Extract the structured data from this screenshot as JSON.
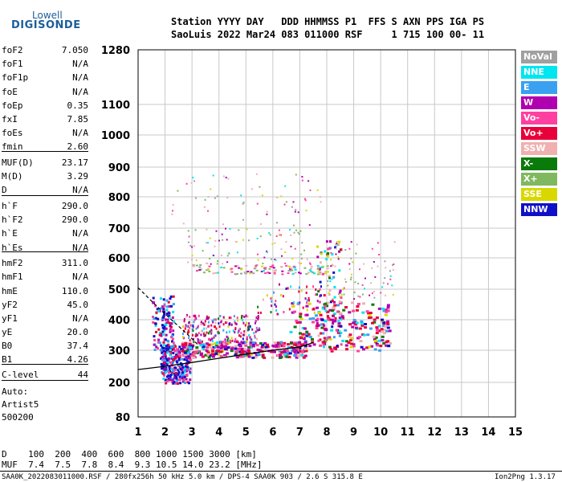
{
  "logo": {
    "top": "Lowell",
    "main": "DIGISONDE"
  },
  "header": {
    "line1": "Station YYYY DAY   DDD HHMMSS P1  FFS S AXN PPS IGA PS",
    "line2": "SaoLuis 2022 Mar24 083 011000 RSF     1 715 100 00- 11"
  },
  "params": [
    {
      "name": "foF2",
      "value": "7.050"
    },
    {
      "name": "foF1",
      "value": "N/A"
    },
    {
      "name": "foF1p",
      "value": "N/A"
    },
    {
      "name": "foE",
      "value": "N/A"
    },
    {
      "name": "foEp",
      "value": "0.35"
    },
    {
      "name": "fxI",
      "value": "7.85"
    },
    {
      "name": "foEs",
      "value": "N/A"
    },
    {
      "name": "fmin",
      "value": "2.60"
    },
    {
      "name": "MUF(D)",
      "value": "23.17"
    },
    {
      "name": "M(D)",
      "value": "3.29"
    },
    {
      "name": "D",
      "value": "N/A"
    },
    {
      "name": "h`F",
      "value": "290.0"
    },
    {
      "name": "h`F2",
      "value": "290.0"
    },
    {
      "name": "h`E",
      "value": "N/A"
    },
    {
      "name": "h`Es",
      "value": "N/A"
    },
    {
      "name": "hmF2",
      "value": "311.0"
    },
    {
      "name": "hmF1",
      "value": "N/A"
    },
    {
      "name": "hmE",
      "value": "110.0"
    },
    {
      "name": "yF2",
      "value": "45.0"
    },
    {
      "name": "yF1",
      "value": "N/A"
    },
    {
      "name": "yE",
      "value": "20.0"
    },
    {
      "name": "B0",
      "value": "37.4"
    },
    {
      "name": "B1",
      "value": "4.26"
    },
    {
      "name": "C-level",
      "value": "44"
    }
  ],
  "notes": {
    "auto": "Auto:",
    "artist": "Artist5",
    "version": "500200"
  },
  "legend": [
    {
      "label": "NoVal",
      "color": "#a0a0a0"
    },
    {
      "label": "NNE",
      "color": "#00e6f0"
    },
    {
      "label": "E",
      "color": "#3aa0f0"
    },
    {
      "label": "W",
      "color": "#b000b0"
    },
    {
      "label": "Vo-",
      "color": "#ff40a0"
    },
    {
      "label": "Vo+",
      "color": "#e8003a"
    },
    {
      "label": "SSW",
      "color": "#f0b0b0"
    },
    {
      "label": "X-",
      "color": "#0a7a0a"
    },
    {
      "label": "X+",
      "color": "#80b860"
    },
    {
      "label": "SSE",
      "color": "#d8d800"
    },
    {
      "label": "NNW",
      "color": "#1010c8"
    }
  ],
  "muf_table": {
    "d_row": "D    100  200  400  600  800 1000 1500 3000 [km]",
    "muf_row": "MUF  7.4  7.5  7.8  8.4  9.3 10.5 14.0 23.2 [MHz]"
  },
  "footer": {
    "left": "SAA0K_2022083011000.RSF / 280fx256h 50 kHz 5.0 km / DPS-4 SAA0K 903 / 2.6 S 315.8 E",
    "right": "Ion2Png 1.3.17"
  },
  "chart_data": {
    "type": "scatter",
    "x_ticks": [
      "1",
      "2",
      "3",
      "4",
      "5",
      "6",
      "7",
      "8",
      "9",
      "10",
      "11",
      "12",
      "13",
      "14",
      "15"
    ],
    "y_ticks": [
      "80",
      "200",
      "300",
      "400",
      "500",
      "600",
      "700",
      "800",
      "900",
      "1000",
      "1100",
      "1280"
    ],
    "xlim": [
      1,
      15
    ],
    "ylim": [
      80,
      1280
    ],
    "grid": true,
    "trace_solid": {
      "x": [
        1.0,
        2.0,
        3.0,
        4.0,
        5.0,
        6.0,
        7.0,
        7.5
      ],
      "y": [
        240,
        250,
        262,
        275,
        288,
        300,
        311,
        325
      ]
    },
    "trace_dashed": {
      "x": [
        1.0,
        1.4,
        1.8,
        2.3,
        2.8,
        3.2
      ],
      "y": [
        505,
        470,
        435,
        395,
        355,
        320
      ]
    }
  }
}
